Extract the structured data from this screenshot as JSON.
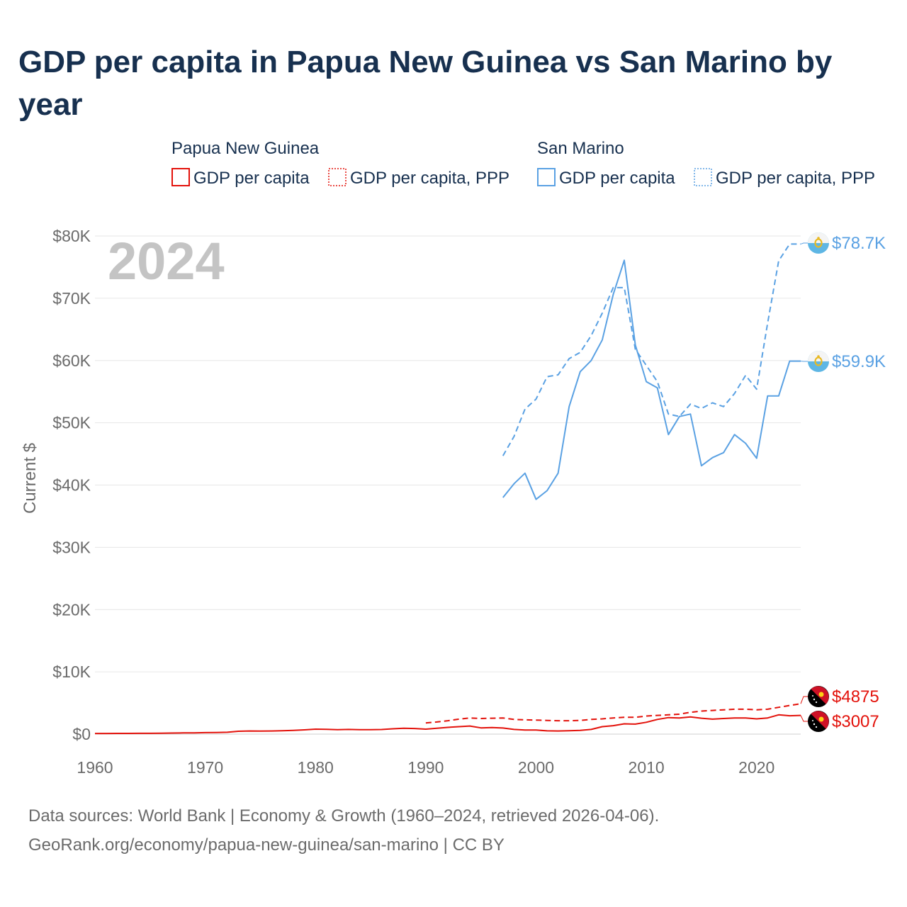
{
  "title": "GDP per capita in Papua New Guinea vs San Marino by year",
  "year_watermark": "2024",
  "source_line1": "Data sources: World Bank | Economy & Growth (1960–2024, retrieved 2026-04-06).",
  "source_line2": "GeoRank.org/economy/papua-new-guinea/san-marino | CC BY",
  "colors": {
    "png": "#e3120b",
    "smr": "#5aa1e3",
    "title": "#17304f",
    "axis": "#6b6b6b",
    "grid": "#e6e6e6",
    "watermark": "#c4c4c4"
  },
  "icons": {
    "png": "papua-new-guinea-flag-icon",
    "smr": "san-marino-flag-icon"
  },
  "chart_data": {
    "type": "line",
    "title": "GDP per capita in Papua New Guinea vs San Marino by year",
    "xlabel": "",
    "ylabel": "Current $",
    "xlim": [
      1960,
      2024
    ],
    "ylim": [
      0,
      80000
    ],
    "x_ticks": [
      1960,
      1970,
      1980,
      1990,
      2000,
      2010,
      2020
    ],
    "x_tick_labels": [
      "1960",
      "1970",
      "1980",
      "1990",
      "2000",
      "2010",
      "2020"
    ],
    "y_ticks": [
      0,
      10000,
      20000,
      30000,
      40000,
      50000,
      60000,
      70000,
      80000
    ],
    "y_tick_labels": [
      "$0",
      "$10K",
      "$20K",
      "$30K",
      "$40K",
      "$50K",
      "$60K",
      "$70K",
      "$80K"
    ],
    "grid": true,
    "legend": [
      {
        "group": "Papua New Guinea",
        "entries": [
          "GDP per capita",
          "GDP per capita, PPP"
        ]
      },
      {
        "group": "San Marino",
        "entries": [
          "GDP per capita",
          "GDP per capita, PPP"
        ]
      }
    ],
    "series": [
      {
        "name": "Papua New Guinea — GDP per capita",
        "country": "png",
        "style": "solid",
        "end_label": "$3007",
        "x": [
          1960,
          1961,
          1962,
          1963,
          1964,
          1965,
          1966,
          1967,
          1968,
          1969,
          1970,
          1971,
          1972,
          1973,
          1974,
          1975,
          1976,
          1977,
          1978,
          1979,
          1980,
          1981,
          1982,
          1983,
          1984,
          1985,
          1986,
          1987,
          1988,
          1989,
          1990,
          1991,
          1992,
          1993,
          1994,
          1995,
          1996,
          1997,
          1998,
          1999,
          2000,
          2001,
          2002,
          2003,
          2004,
          2005,
          2006,
          2007,
          2008,
          2009,
          2010,
          2011,
          2012,
          2013,
          2014,
          2015,
          2016,
          2017,
          2018,
          2019,
          2020,
          2021,
          2022,
          2023,
          2024
        ],
        "values": [
          100,
          105,
          110,
          115,
          120,
          130,
          150,
          170,
          190,
          210,
          240,
          260,
          300,
          450,
          500,
          480,
          500,
          540,
          600,
          680,
          800,
          760,
          720,
          750,
          720,
          700,
          740,
          850,
          950,
          900,
          800,
          950,
          1080,
          1200,
          1300,
          1000,
          1050,
          980,
          750,
          650,
          650,
          520,
          500,
          550,
          600,
          750,
          1200,
          1350,
          1650,
          1600,
          1900,
          2350,
          2650,
          2600,
          2750,
          2550,
          2400,
          2500,
          2600,
          2600,
          2450,
          2600,
          3100,
          2950,
          3007
        ]
      },
      {
        "name": "Papua New Guinea — GDP per capita, PPP",
        "country": "png",
        "style": "dashed",
        "end_label": "$4875",
        "x": [
          1990,
          1991,
          1992,
          1993,
          1994,
          1995,
          1996,
          1997,
          1998,
          1999,
          2000,
          2001,
          2002,
          2003,
          2004,
          2005,
          2006,
          2007,
          2008,
          2009,
          2010,
          2011,
          2012,
          2013,
          2014,
          2015,
          2016,
          2017,
          2018,
          2019,
          2020,
          2021,
          2022,
          2023,
          2024
        ],
        "values": [
          1800,
          1950,
          2150,
          2400,
          2600,
          2500,
          2550,
          2600,
          2350,
          2300,
          2250,
          2200,
          2150,
          2150,
          2200,
          2350,
          2450,
          2600,
          2700,
          2700,
          2900,
          3000,
          3100,
          3200,
          3500,
          3700,
          3800,
          3900,
          4000,
          4000,
          3900,
          4000,
          4300,
          4600,
          4875
        ]
      },
      {
        "name": "San Marino — GDP per capita",
        "country": "smr",
        "style": "solid",
        "end_label": "$59.9K",
        "x": [
          1997,
          1998,
          1999,
          2000,
          2001,
          2002,
          2003,
          2004,
          2005,
          2006,
          2007,
          2008,
          2009,
          2010,
          2011,
          2012,
          2013,
          2014,
          2015,
          2016,
          2017,
          2018,
          2019,
          2020,
          2021,
          2022,
          2023,
          2024
        ],
        "values": [
          38000,
          40200,
          41900,
          37700,
          39100,
          41900,
          52600,
          58200,
          60000,
          63300,
          70600,
          76100,
          62500,
          56600,
          55600,
          48100,
          51000,
          51400,
          43100,
          44400,
          45200,
          48100,
          46700,
          44300,
          54300,
          54300,
          59900,
          59900
        ]
      },
      {
        "name": "San Marino — GDP per capita, PPP",
        "country": "smr",
        "style": "dashed",
        "end_label": "$78.7K",
        "x": [
          1997,
          1998,
          1999,
          2000,
          2001,
          2002,
          2003,
          2004,
          2005,
          2006,
          2007,
          2008,
          2009,
          2010,
          2011,
          2012,
          2013,
          2014,
          2015,
          2016,
          2017,
          2018,
          2019,
          2020,
          2021,
          2022,
          2023,
          2024
        ],
        "values": [
          44700,
          47800,
          52200,
          53800,
          57400,
          57700,
          60300,
          61300,
          64000,
          67600,
          71700,
          71700,
          61800,
          59200,
          56600,
          51400,
          51000,
          53000,
          52300,
          53200,
          52600,
          54700,
          57600,
          55400,
          66000,
          76000,
          78700,
          78700
        ]
      }
    ]
  }
}
